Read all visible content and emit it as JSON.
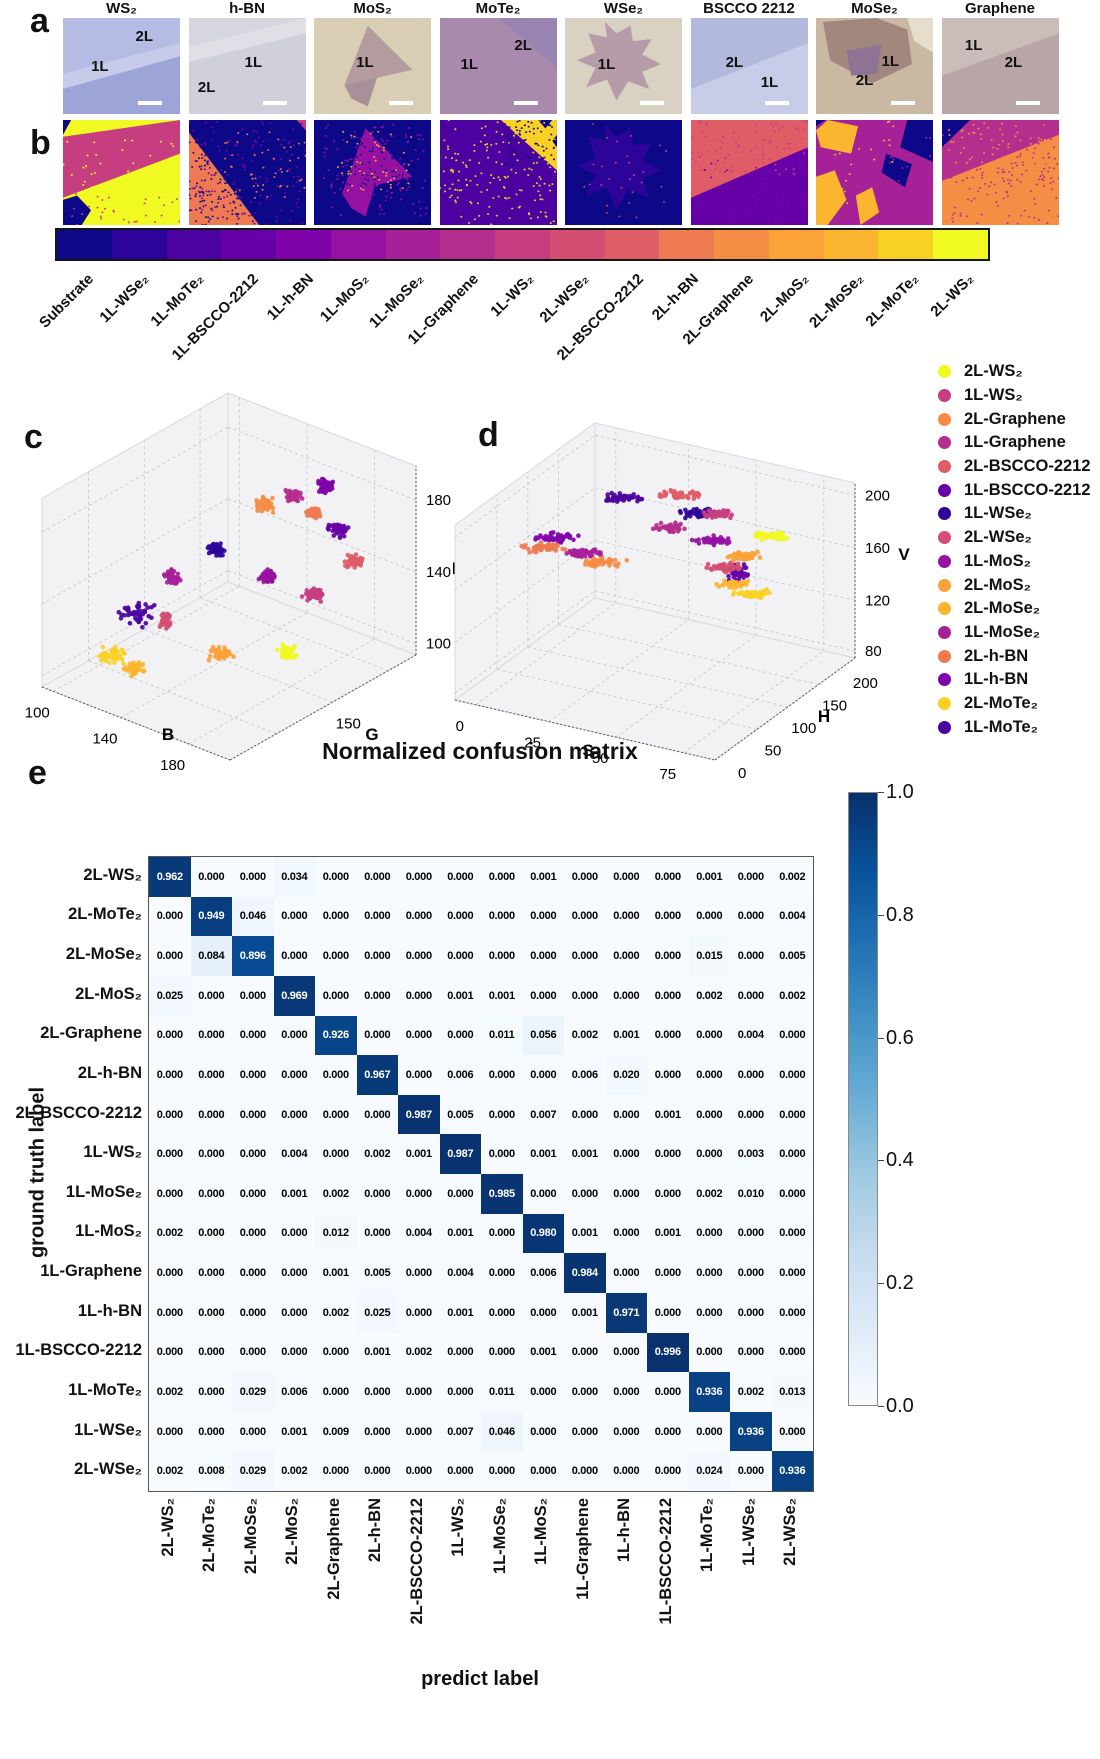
{
  "panel_labels": {
    "a": "a",
    "b": "b",
    "c": "c",
    "d": "d",
    "e": "e"
  },
  "classes": [
    {
      "name": "Substrate",
      "color": "#0d0887"
    },
    {
      "name": "1L-WSe₂",
      "color": "#2d049a"
    },
    {
      "name": "1L-MoTe₂",
      "color": "#4c02a1"
    },
    {
      "name": "1L-BSCCO-2212",
      "color": "#6600a7"
    },
    {
      "name": "1L-h-BN",
      "color": "#7e03a8"
    },
    {
      "name": "1L-MoS₂",
      "color": "#9511a1"
    },
    {
      "name": "1L-MoSe₂",
      "color": "#a62098"
    },
    {
      "name": "1L-Graphene",
      "color": "#b42e8d"
    },
    {
      "name": "1L-WS₂",
      "color": "#c73e80"
    },
    {
      "name": "2L-WSe₂",
      "color": "#d44e74"
    },
    {
      "name": "2L-BSCCO-2212",
      "color": "#e05d68"
    },
    {
      "name": "2L-h-BN",
      "color": "#ee7a52"
    },
    {
      "name": "2L-Graphene",
      "color": "#f68d45"
    },
    {
      "name": "2L-MoS₂",
      "color": "#fba238"
    },
    {
      "name": "2L-MoSe₂",
      "color": "#fcb52e"
    },
    {
      "name": "2L-MoTe₂",
      "color": "#f9d125"
    },
    {
      "name": "2L-WS₂",
      "color": "#f0f921"
    }
  ],
  "panel_a": {
    "samples": [
      {
        "title": "WS₂",
        "bg": "#a9aedd",
        "region_colors": [
          "#b6bbe4",
          "#c7cae9",
          "#9ca4d8"
        ],
        "labels": [
          {
            "t": "2L",
            "x": 62,
            "y": 10
          },
          {
            "t": "1L",
            "x": 24,
            "y": 42
          }
        ]
      },
      {
        "title": "h-BN",
        "bg": "#d5d6de",
        "region_colors": [
          "#dfdfe5",
          "#cfd0d9"
        ],
        "labels": [
          {
            "t": "1L",
            "x": 48,
            "y": 38
          },
          {
            "t": "2L",
            "x": 8,
            "y": 64
          }
        ]
      },
      {
        "title": "MoS₂",
        "bg": "#d9ceb3",
        "region_colors": [
          "#b49b9e",
          "#a8909a"
        ],
        "labels": [
          {
            "t": "1L",
            "x": 36,
            "y": 38
          }
        ]
      },
      {
        "title": "MoTe₂",
        "bg": "#a88aac",
        "region_colors": [
          "#9a84b2"
        ],
        "labels": [
          {
            "t": "2L",
            "x": 64,
            "y": 20
          },
          {
            "t": "1L",
            "x": 18,
            "y": 40
          }
        ]
      },
      {
        "title": "WSe₂",
        "bg": "#d9d1c1",
        "region_colors": [
          "#b69ba8"
        ],
        "labels": [
          {
            "t": "1L",
            "x": 28,
            "y": 40
          }
        ]
      },
      {
        "title": "BSCCO 2212",
        "bg": "#c7cce8",
        "region_colors": [
          "#b2b9dd"
        ],
        "labels": [
          {
            "t": "2L",
            "x": 30,
            "y": 38
          },
          {
            "t": "1L",
            "x": 60,
            "y": 58
          }
        ]
      },
      {
        "title": "MoSe₂",
        "bg": "#c9b9a3",
        "region_colors": [
          "#a2877f",
          "#8d7494",
          "#e6decd"
        ],
        "labels": [
          {
            "t": "1L",
            "x": 56,
            "y": 36
          },
          {
            "t": "2L",
            "x": 34,
            "y": 56
          }
        ]
      },
      {
        "title": "Graphene",
        "bg": "#b7a5a8",
        "region_colors": [
          "#cabcb9"
        ],
        "labels": [
          {
            "t": "1L",
            "x": 20,
            "y": 20
          },
          {
            "t": "2L",
            "x": 54,
            "y": 38
          }
        ]
      }
    ]
  },
  "panel_b": {
    "maps": [
      {
        "sample": "WS₂",
        "bg": "2L-WS₂",
        "regions": [
          "1L-WS₂",
          "Substrate",
          "Substrate"
        ],
        "speckles": [
          {
            "cls": "2L-WS₂",
            "n": 30
          },
          {
            "cls": "1L-WS₂",
            "n": 30
          }
        ]
      },
      {
        "sample": "h-BN",
        "bg": "Substrate",
        "regions": [
          "2L-h-BN",
          "1L-WS₂"
        ],
        "speckles": [
          {
            "cls": "Substrate",
            "n": 150
          },
          {
            "cls": "1L-h-BN",
            "n": 130
          },
          {
            "cls": "2L-h-BN",
            "n": 50
          }
        ]
      },
      {
        "sample": "MoS₂",
        "bg": "Substrate",
        "regions": [
          "1L-MoS₂",
          "1L-MoS₂"
        ],
        "speckles": [
          {
            "cls": "1L-MoS₂",
            "n": 140
          },
          {
            "cls": "Substrate",
            "n": 70
          },
          {
            "cls": "2L-MoS₂",
            "n": 50
          }
        ]
      },
      {
        "sample": "MoTe₂",
        "bg": "1L-MoTe₂",
        "regions": [
          "2L-MoTe₂",
          "Substrate",
          "Substrate"
        ],
        "speckles": [
          {
            "cls": "2L-MoTe₂",
            "n": 160
          },
          {
            "cls": "Substrate",
            "n": 70
          }
        ]
      },
      {
        "sample": "WSe₂",
        "bg": "Substrate",
        "regions": [
          "1L-WSe₂"
        ],
        "speckles": [
          {
            "cls": "1L-WS₂",
            "n": 28
          }
        ]
      },
      {
        "sample": "BSCCO 2212",
        "bg": "1L-BSCCO-2212",
        "regions": [
          "2L-BSCCO-2212"
        ],
        "speckles": [
          {
            "cls": "1L-WS₂",
            "n": 90
          },
          {
            "cls": "1L-h-BN",
            "n": 70
          }
        ]
      },
      {
        "sample": "MoSe₂",
        "bg": "1L-MoSe₂",
        "regions": [
          "2L-MoSe₂",
          "2L-MoSe₂",
          "2L-MoSe₂",
          "Substrate",
          "Substrate",
          "Substrate"
        ],
        "speckles": [
          {
            "cls": "2L-MoSe₂",
            "n": 30
          },
          {
            "cls": "1L-MoSe₂",
            "n": 25
          }
        ]
      },
      {
        "sample": "Graphene",
        "bg": "2L-Graphene",
        "regions": [
          "1L-Graphene",
          "Substrate"
        ],
        "speckles": [
          {
            "cls": "1L-Graphene",
            "n": 100
          },
          {
            "cls": "2L-Graphene",
            "n": 70
          },
          {
            "cls": "1L-Graphene",
            "n": 60
          }
        ]
      }
    ]
  },
  "colorbar_b_labels": [
    "Substrate",
    "1L-WSe₂",
    "1L-MoTe₂",
    "1L-BSCCO-2212",
    "1L-h-BN",
    "1L-MoS₂",
    "1L-MoSe₂",
    "1L-Graphene",
    "1L-WS₂",
    "2L-WSe₂",
    "2L-BSCCO-2212",
    "2L-h-BN",
    "2L-Graphene",
    "2L-MoS₂",
    "2L-MoSe₂",
    "2L-MoTe₂",
    "2L-WS₂"
  ],
  "legend": {
    "entries": [
      "2L-WS₂",
      "1L-WS₂",
      "2L-Graphene",
      "1L-Graphene",
      "2L-BSCCO-2212",
      "1L-BSCCO-2212",
      "1L-WSe₂",
      "2L-WSe₂",
      "1L-MoS₂",
      "2L-MoS₂",
      "2L-MoSe₂",
      "1L-MoSe₂",
      "2L-h-BN",
      "1L-h-BN",
      "2L-MoTe₂",
      "1L-MoTe₂"
    ]
  },
  "chart_data": [
    {
      "id": "c",
      "type": "scatter3d",
      "axes": {
        "x": {
          "label": "B",
          "ticks": [
            "100",
            "140",
            "180"
          ]
        },
        "y": {
          "label": "G",
          "ticks": [
            "150"
          ]
        },
        "z": {
          "label": "R",
          "ticks": [
            "100",
            "140",
            "180"
          ]
        }
      },
      "clusters": [
        {
          "label": "2L-MoTe₂",
          "pos": [
            0.155,
            0.845
          ],
          "spread": [
            18,
            11
          ]
        },
        {
          "label": "2L-MoSe₂",
          "pos": [
            0.215,
            0.885
          ],
          "spread": [
            14,
            9
          ]
        },
        {
          "label": "2L-MoS₂",
          "pos": [
            0.45,
            0.84
          ],
          "spread": [
            14,
            10
          ]
        },
        {
          "label": "2L-WS₂",
          "pos": [
            0.625,
            0.835
          ],
          "spread": [
            14,
            10
          ]
        },
        {
          "label": "1L-MoTe₂",
          "pos": [
            0.22,
            0.715
          ],
          "spread": [
            26,
            16
          ]
        },
        {
          "label": "2L-WSe₂",
          "pos": [
            0.3,
            0.735
          ],
          "spread": [
            9,
            13
          ]
        },
        {
          "label": "1L-MoSe₂",
          "pos": [
            0.315,
            0.6
          ],
          "spread": [
            12,
            9
          ]
        },
        {
          "label": "1L-WSe₂",
          "pos": [
            0.435,
            0.515
          ],
          "spread": [
            13,
            9
          ]
        },
        {
          "label": "1L-MoS₂",
          "pos": [
            0.575,
            0.6
          ],
          "spread": [
            13,
            9
          ]
        },
        {
          "label": "1L-WS₂",
          "pos": [
            0.7,
            0.655
          ],
          "spread": [
            14,
            9
          ]
        },
        {
          "label": "2L-Graphene",
          "pos": [
            0.565,
            0.375
          ],
          "spread": [
            14,
            10
          ]
        },
        {
          "label": "1L-Graphene",
          "pos": [
            0.645,
            0.345
          ],
          "spread": [
            13,
            9
          ]
        },
        {
          "label": "1L-h-BN",
          "pos": [
            0.73,
            0.315
          ],
          "spread": [
            12,
            10
          ]
        },
        {
          "label": "1L-BSCCO-2212",
          "pos": [
            0.765,
            0.45
          ],
          "spread": [
            13,
            10
          ]
        },
        {
          "label": "2L-h-BN",
          "pos": [
            0.7,
            0.4
          ],
          "spread": [
            11,
            9
          ]
        },
        {
          "label": "2L-BSCCO-2212",
          "pos": [
            0.81,
            0.55
          ],
          "spread": [
            13,
            9
          ]
        }
      ]
    },
    {
      "id": "d",
      "type": "scatter3d",
      "axes": {
        "x": {
          "label": "S",
          "ticks": [
            "0",
            "25",
            "50",
            "75"
          ]
        },
        "y": {
          "label": "H",
          "ticks": [
            "0",
            "50",
            "100",
            "150",
            "200"
          ]
        },
        "z": {
          "label": "V",
          "ticks": [
            "80",
            "120",
            "160",
            "200"
          ]
        }
      },
      "clusters": [
        {
          "label": "1L-MoTe₂",
          "pos": [
            0.41,
            0.325
          ],
          "spread": [
            30,
            6
          ]
        },
        {
          "label": "2L-BSCCO-2212",
          "pos": [
            0.565,
            0.315
          ],
          "spread": [
            26,
            6
          ]
        },
        {
          "label": "1L-WSe₂",
          "pos": [
            0.615,
            0.37
          ],
          "spread": [
            22,
            6
          ]
        },
        {
          "label": "1L-WS₂",
          "pos": [
            0.675,
            0.375
          ],
          "spread": [
            22,
            6
          ]
        },
        {
          "label": "1L-Graphene",
          "pos": [
            0.535,
            0.415
          ],
          "spread": [
            24,
            6
          ]
        },
        {
          "label": "1L-MoS₂",
          "pos": [
            0.655,
            0.455
          ],
          "spread": [
            24,
            6
          ]
        },
        {
          "label": "2L-WS₂",
          "pos": [
            0.82,
            0.44
          ],
          "spread": [
            30,
            7
          ]
        },
        {
          "label": "1L-h-BN",
          "pos": [
            0.235,
            0.445
          ],
          "spread": [
            30,
            7
          ]
        },
        {
          "label": "2L-h-BN",
          "pos": [
            0.2,
            0.475
          ],
          "spread": [
            30,
            7
          ]
        },
        {
          "label": "1L-MoSe₂",
          "pos": [
            0.31,
            0.49
          ],
          "spread": [
            26,
            6
          ]
        },
        {
          "label": "2L-Graphene",
          "pos": [
            0.355,
            0.52
          ],
          "spread": [
            28,
            7
          ]
        },
        {
          "label": "2L-MoS₂",
          "pos": [
            0.74,
            0.5
          ],
          "spread": [
            22,
            6
          ]
        },
        {
          "label": "1L-BSCCO-2212",
          "pos": [
            0.725,
            0.55
          ],
          "spread": [
            16,
            10
          ]
        },
        {
          "label": "2L-WSe₂",
          "pos": [
            0.685,
            0.535
          ],
          "spread": [
            20,
            6
          ]
        },
        {
          "label": "2L-MoSe₂",
          "pos": [
            0.705,
            0.585
          ],
          "spread": [
            20,
            6
          ]
        },
        {
          "label": "2L-MoTe₂",
          "pos": [
            0.76,
            0.615
          ],
          "spread": [
            26,
            6
          ]
        }
      ]
    },
    {
      "id": "e",
      "type": "heatmap",
      "title": "Normalized confusion matrix",
      "xlabel": "predict label",
      "ylabel": "ground truth label",
      "colormap": "Blues",
      "row_labels": [
        "2L-WS₂",
        "2L-MoTe₂",
        "2L-MoSe₂",
        "2L-MoS₂",
        "2L-Graphene",
        "2L-h-BN",
        "2L-BSCCO-2212",
        "1L-WS₂",
        "1L-MoSe₂",
        "1L-MoS₂",
        "1L-Graphene",
        "1L-h-BN",
        "1L-BSCCO-2212",
        "1L-MoTe₂",
        "1L-WSe₂",
        "2L-WSe₂"
      ],
      "col_labels": [
        "2L-WS₂",
        "2L-MoTe₂",
        "2L-MoSe₂",
        "2L-MoS₂",
        "2L-Graphene",
        "2L-h-BN",
        "2L-BSCCO-2212",
        "1L-WS₂",
        "1L-MoSe₂",
        "1L-MoS₂",
        "1L-Graphene",
        "1L-h-BN",
        "1L-BSCCO-2212",
        "1L-MoTe₂",
        "1L-WSe₂",
        "2L-WSe₂"
      ],
      "values": [
        [
          0.962,
          0.0,
          0.0,
          0.034,
          0.0,
          0.0,
          0.0,
          0.0,
          0.0,
          0.001,
          0.0,
          0.0,
          0.0,
          0.001,
          0.0,
          0.002
        ],
        [
          0.0,
          0.949,
          0.046,
          0.0,
          0.0,
          0.0,
          0.0,
          0.0,
          0.0,
          0.0,
          0.0,
          0.0,
          0.0,
          0.0,
          0.0,
          0.004
        ],
        [
          0.0,
          0.084,
          0.896,
          0.0,
          0.0,
          0.0,
          0.0,
          0.0,
          0.0,
          0.0,
          0.0,
          0.0,
          0.0,
          0.015,
          0.0,
          0.005
        ],
        [
          0.025,
          0.0,
          0.0,
          0.969,
          0.0,
          0.0,
          0.0,
          0.001,
          0.001,
          0.0,
          0.0,
          0.0,
          0.0,
          0.002,
          0.0,
          0.002
        ],
        [
          0.0,
          0.0,
          0.0,
          0.0,
          0.926,
          0.0,
          0.0,
          0.0,
          0.011,
          0.056,
          0.002,
          0.001,
          0.0,
          0.0,
          0.004,
          0.0
        ],
        [
          0.0,
          0.0,
          0.0,
          0.0,
          0.0,
          0.967,
          0.0,
          0.006,
          0.0,
          0.0,
          0.006,
          0.02,
          0.0,
          0.0,
          0.0,
          0.0
        ],
        [
          0.0,
          0.0,
          0.0,
          0.0,
          0.0,
          0.0,
          0.987,
          0.005,
          0.0,
          0.007,
          0.0,
          0.0,
          0.001,
          0.0,
          0.0,
          0.0
        ],
        [
          0.0,
          0.0,
          0.0,
          0.004,
          0.0,
          0.002,
          0.001,
          0.987,
          0.0,
          0.001,
          0.001,
          0.0,
          0.0,
          0.0,
          0.003,
          0.0
        ],
        [
          0.0,
          0.0,
          0.0,
          0.001,
          0.002,
          0.0,
          0.0,
          0.0,
          0.985,
          0.0,
          0.0,
          0.0,
          0.0,
          0.002,
          0.01,
          0.0
        ],
        [
          0.002,
          0.0,
          0.0,
          0.0,
          0.012,
          0.0,
          0.004,
          0.001,
          0.0,
          0.98,
          0.001,
          0.0,
          0.001,
          0.0,
          0.0,
          0.0
        ],
        [
          0.0,
          0.0,
          0.0,
          0.0,
          0.001,
          0.005,
          0.0,
          0.004,
          0.0,
          0.006,
          0.984,
          0.0,
          0.0,
          0.0,
          0.0,
          0.0
        ],
        [
          0.0,
          0.0,
          0.0,
          0.0,
          0.002,
          0.025,
          0.0,
          0.001,
          0.0,
          0.0,
          0.001,
          0.971,
          0.0,
          0.0,
          0.0,
          0.0
        ],
        [
          0.0,
          0.0,
          0.0,
          0.0,
          0.0,
          0.001,
          0.002,
          0.0,
          0.0,
          0.001,
          0.0,
          0.0,
          0.996,
          0.0,
          0.0,
          0.0
        ],
        [
          0.002,
          0.0,
          0.029,
          0.006,
          0.0,
          0.0,
          0.0,
          0.0,
          0.011,
          0.0,
          0.0,
          0.0,
          0.0,
          0.936,
          0.002,
          0.013
        ],
        [
          0.0,
          0.0,
          0.0,
          0.001,
          0.009,
          0.0,
          0.0,
          0.007,
          0.046,
          0.0,
          0.0,
          0.0,
          0.0,
          0.0,
          0.936,
          0.0
        ],
        [
          0.002,
          0.008,
          0.029,
          0.002,
          0.0,
          0.0,
          0.0,
          0.0,
          0.0,
          0.0,
          0.0,
          0.0,
          0.0,
          0.024,
          0.0,
          0.936
        ]
      ],
      "colorbar_ticks": [
        "1.0",
        "0.8",
        "0.6",
        "0.4",
        "0.2",
        "0.0"
      ]
    }
  ]
}
